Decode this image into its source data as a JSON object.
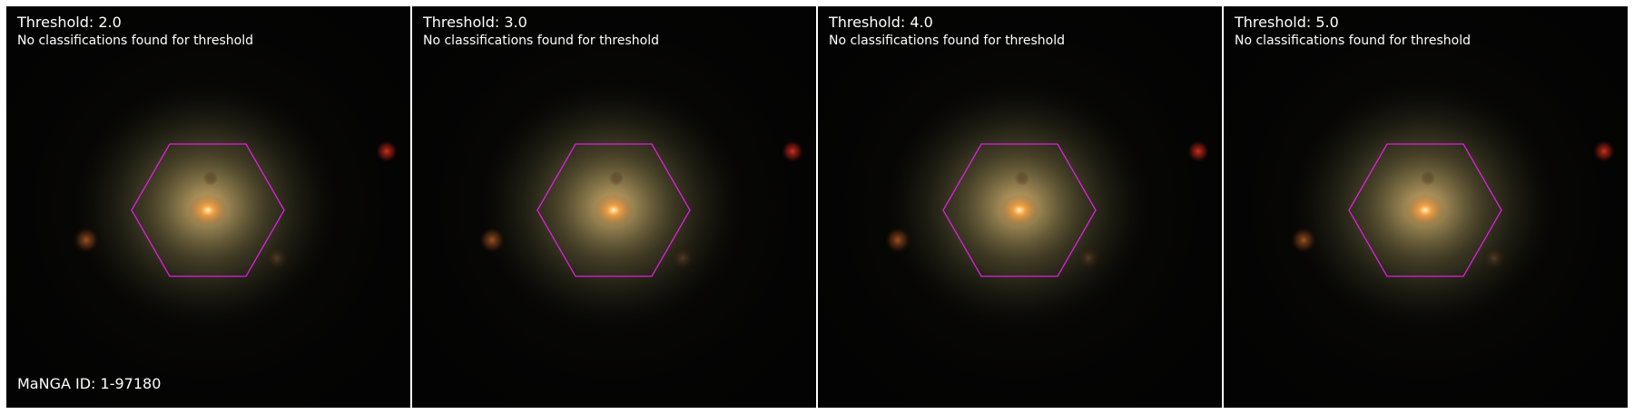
{
  "colors": {
    "hexagon_outline": "#e020e0",
    "background": "#030303",
    "text": "#ffffff"
  },
  "panels": [
    {
      "title": "Threshold: 2.0",
      "status": "No classifications found for threshold"
    },
    {
      "title": "Threshold: 3.0",
      "status": "No classifications found for threshold"
    },
    {
      "title": "Threshold: 4.0",
      "status": "No classifications found for threshold"
    },
    {
      "title": "Threshold: 5.0",
      "status": "No classifications found for threshold"
    }
  ],
  "manga_id": "MaNGA ID: 1-97180",
  "image": {
    "subject": "galaxy",
    "overlay": "hexagon"
  }
}
